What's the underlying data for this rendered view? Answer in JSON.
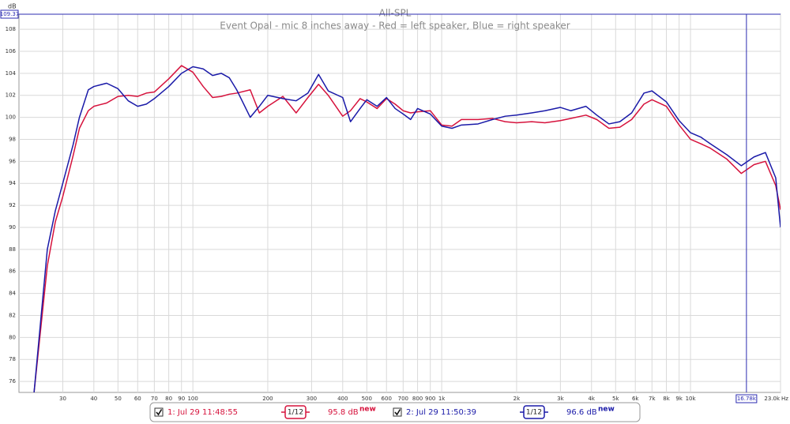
{
  "chart_data": {
    "type": "line",
    "title": "All-SPL",
    "subtitle": "Event Opal - mic 8 inches away - Red = left speaker, Blue = right speaker",
    "y_label": "dB",
    "x_label": "Hz",
    "x_scale": "log",
    "grid": true,
    "xlim": [
      20,
      23000
    ],
    "ylim": [
      75,
      109.37
    ],
    "xticks": [
      30,
      40,
      50,
      60,
      70,
      80,
      90,
      100,
      200,
      300,
      400,
      500,
      600,
      700,
      800,
      900,
      {
        "value": 1000,
        "label": "1k"
      },
      {
        "value": 2000,
        "label": "2k"
      },
      {
        "value": 3000,
        "label": "3k"
      },
      {
        "value": 4000,
        "label": "4k"
      },
      {
        "value": 5000,
        "label": "5k"
      },
      {
        "value": 6000,
        "label": "6k"
      },
      {
        "value": 7000,
        "label": "7k"
      },
      {
        "value": 8000,
        "label": "8k"
      },
      {
        "value": 9000,
        "label": "9k"
      },
      {
        "value": 10000,
        "label": "10k"
      },
      {
        "value": 23000,
        "label": "23.0k"
      }
    ],
    "yticks": [
      76,
      78,
      80,
      82,
      84,
      86,
      88,
      90,
      92,
      94,
      96,
      98,
      100,
      102,
      104,
      106,
      108
    ],
    "cursor": {
      "x": {
        "value": 16780,
        "label": "16.78k"
      },
      "y": 109.37,
      "color": "#2b2bb0"
    },
    "x": [
      23,
      26,
      28,
      30,
      33,
      35,
      38,
      40,
      45,
      50,
      55,
      60,
      65,
      70,
      80,
      90,
      100,
      110,
      120,
      130,
      140,
      150,
      170,
      185,
      200,
      230,
      260,
      290,
      320,
      350,
      400,
      430,
      470,
      500,
      550,
      600,
      650,
      700,
      750,
      800,
      900,
      1000,
      1100,
      1200,
      1400,
      1600,
      1800,
      2000,
      2300,
      2600,
      3000,
      3300,
      3800,
      4200,
      4700,
      5200,
      5800,
      6500,
      7000,
      8000,
      9000,
      10000,
      11000,
      12000,
      14000,
      16000,
      18000,
      20000,
      22000,
      23000
    ],
    "series": [
      {
        "name": "1: Jul 29 11:48:55",
        "color": "#d6123c",
        "smoothing": "1/12",
        "level": "95.8 dB",
        "badge": "new",
        "values": [
          75,
          86.5,
          90.5,
          92.8,
          96.5,
          99,
          100.6,
          101,
          101.3,
          101.9,
          102,
          101.9,
          102.2,
          102.3,
          103.5,
          104.7,
          104.1,
          102.8,
          101.8,
          101.9,
          102.1,
          102.2,
          102.5,
          100.4,
          101,
          101.9,
          100.4,
          101.8,
          103,
          102,
          100.1,
          100.6,
          101.7,
          101.4,
          100.8,
          101.7,
          101.2,
          100.6,
          100.4,
          100.5,
          100.6,
          99.3,
          99.2,
          99.8,
          99.8,
          99.9,
          99.6,
          99.5,
          99.6,
          99.5,
          99.7,
          99.9,
          100.2,
          99.8,
          99,
          99.1,
          99.8,
          101.2,
          101.6,
          101,
          99.3,
          98,
          97.6,
          97.2,
          96.2,
          94.9,
          95.7,
          96,
          93.8,
          91.6
        ]
      },
      {
        "name": "2: Jul 29 11:50:39",
        "color": "#1a1aa8",
        "smoothing": "1/12",
        "level": "96.6 dB",
        "badge": "new",
        "values": [
          75,
          88,
          91.5,
          94,
          97.5,
          100,
          102.5,
          102.8,
          103.1,
          102.6,
          101.5,
          101,
          101.2,
          101.7,
          102.8,
          104,
          104.6,
          104.4,
          103.8,
          104,
          103.6,
          102.5,
          100,
          101,
          102,
          101.7,
          101.5,
          102.2,
          103.9,
          102.4,
          101.8,
          99.6,
          100.8,
          101.6,
          101,
          101.8,
          100.8,
          100.3,
          99.8,
          100.8,
          100.3,
          99.2,
          99,
          99.3,
          99.4,
          99.8,
          100.1,
          100.2,
          100.4,
          100.6,
          100.9,
          100.6,
          101,
          100.2,
          99.4,
          99.6,
          100.4,
          102.2,
          102.4,
          101.4,
          99.7,
          98.6,
          98.2,
          97.6,
          96.6,
          95.6,
          96.4,
          96.8,
          94.5,
          90
        ]
      }
    ]
  }
}
